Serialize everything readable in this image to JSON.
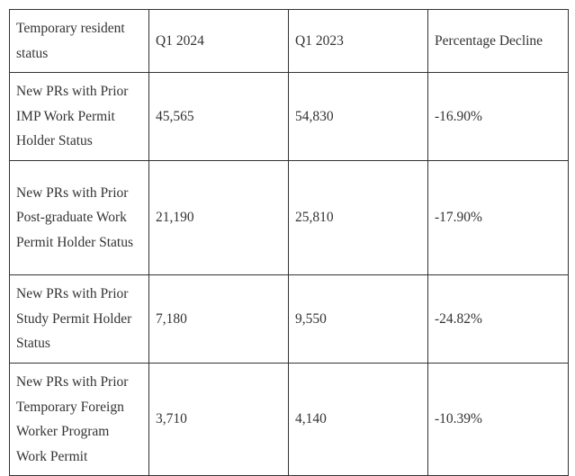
{
  "table": {
    "header": [
      "Temporary resident status",
      "Q1 2024",
      "Q1 2023",
      "Percentage Decline"
    ],
    "rows": [
      [
        "New PRs with Prior IMP Work Permit Holder Status",
        "45,565",
        "54,830",
        "-16.90%"
      ],
      [
        "New PRs with Prior Post-graduate Work Permit Holder Status",
        "21,190",
        "25,810",
        "-17.90%"
      ],
      [
        "New PRs with Prior Study Permit Holder Status",
        "7,180",
        "9,550",
        "-24.82%"
      ],
      [
        "New PRs with Prior Temporary Foreign Worker Program Work Permit",
        "3,710",
        "4,140",
        "-10.39%"
      ]
    ]
  }
}
